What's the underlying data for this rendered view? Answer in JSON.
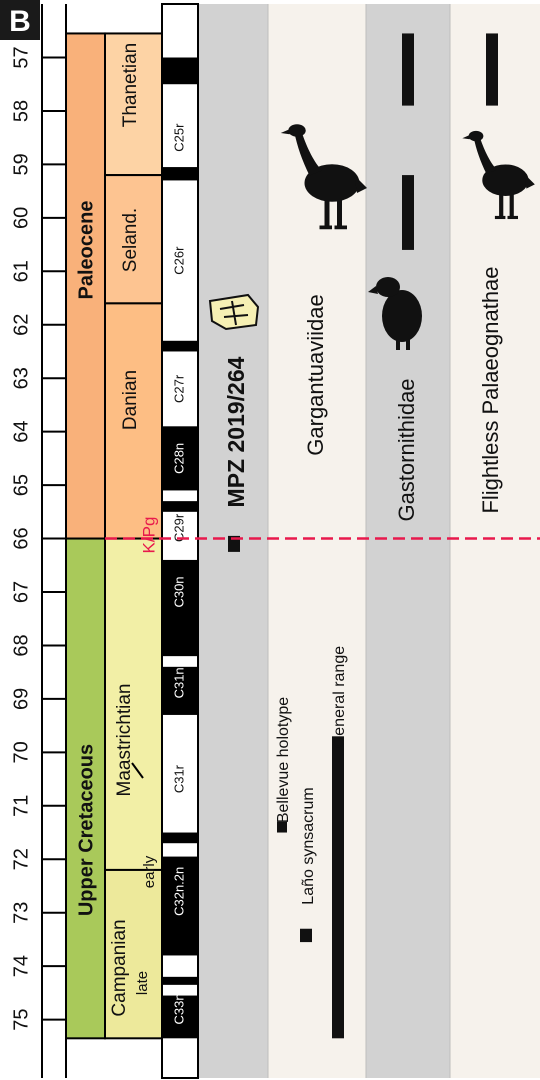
{
  "panel_label": "B",
  "age_axis": {
    "min": 57,
    "max": 75,
    "ticks": [
      57,
      58,
      59,
      60,
      61,
      62,
      63,
      64,
      65,
      66,
      67,
      68,
      69,
      70,
      71,
      72,
      73,
      74,
      75
    ]
  },
  "periods": [
    {
      "name": "Paleocene",
      "start": 56.55,
      "end": 66.0,
      "color": "#f9b17a"
    },
    {
      "name": "Upper Cretaceous",
      "start": 66.0,
      "end": 75.35,
      "color": "#a9c95a"
    }
  ],
  "stages": [
    {
      "name": "Thanetian",
      "start": 56.55,
      "end": 59.2,
      "color": "#fdd3a5"
    },
    {
      "name": "Seland.",
      "start": 59.2,
      "end": 61.6,
      "color": "#fdc491"
    },
    {
      "name": "Danian",
      "start": 61.6,
      "end": 66.0,
      "color": "#fdbe84"
    },
    {
      "name": "Maastrichtian",
      "start": 66.0,
      "end": 72.2,
      "color": "#f2efa6",
      "sub_label": "early"
    },
    {
      "name": "Campanian",
      "start": 72.2,
      "end": 75.35,
      "color": "#ede99b",
      "sub_label": "late"
    }
  ],
  "magnetochrons": {
    "labels": [
      {
        "text": "C25r",
        "age": 58.5
      },
      {
        "text": "C26r",
        "age": 60.8
      },
      {
        "text": "C27r",
        "age": 63.2
      },
      {
        "text": "C28n",
        "age": 64.5
      },
      {
        "text": "C29r",
        "age": 65.8
      },
      {
        "text": "C30n",
        "age": 67.0
      },
      {
        "text": "C31n",
        "age": 68.7
      },
      {
        "text": "C31r",
        "age": 70.5
      },
      {
        "text": "C32n.2n",
        "age": 72.6
      },
      {
        "text": "C33n",
        "age": 74.8
      }
    ],
    "black_intervals": [
      [
        57.0,
        57.5
      ],
      [
        59.05,
        59.3
      ],
      [
        62.3,
        62.5
      ],
      [
        63.9,
        65.1
      ],
      [
        65.3,
        65.5
      ],
      [
        66.4,
        68.2
      ],
      [
        68.4,
        69.3
      ],
      [
        71.5,
        71.7
      ],
      [
        71.95,
        73.8
      ],
      [
        74.2,
        74.35
      ],
      [
        74.55,
        75.35
      ]
    ]
  },
  "kpg_label": "K/Pg",
  "kpg_age": 66.0,
  "specimen": {
    "label": "MPZ 2019/264",
    "age": 66.1
  },
  "taxa": [
    {
      "name": "Gargantuaviidae",
      "ranges": [
        [
          69.7,
          75.35
        ]
      ],
      "silhouette": "bird-silhouette-gargantuaviid"
    },
    {
      "name": "Gastornithidae",
      "ranges": [
        [
          56.55,
          57.9
        ],
        [
          59.2,
          60.6
        ]
      ],
      "silhouette": "bird-silhouette-gastornis"
    },
    {
      "name": "Flightless Palaeognathae",
      "ranges": [
        [
          56.55,
          57.9
        ]
      ],
      "silhouette": "bird-silhouette-palaeognath"
    }
  ],
  "gargantuaviid_records": [
    {
      "label": "Bellevue holotype",
      "start": 71.3,
      "end": 71.5
    },
    {
      "label": "Laño synsacrum",
      "start": 73.3,
      "end": 73.55
    },
    {
      "label": "General range",
      "start": 69.7,
      "end": 75.35
    }
  ],
  "colors": {
    "gray_band": "#d2d2d2",
    "cream_band": "#f6f2ec",
    "kpg_line": "#e8194c",
    "specimen_bone": "#f6f0b4"
  }
}
